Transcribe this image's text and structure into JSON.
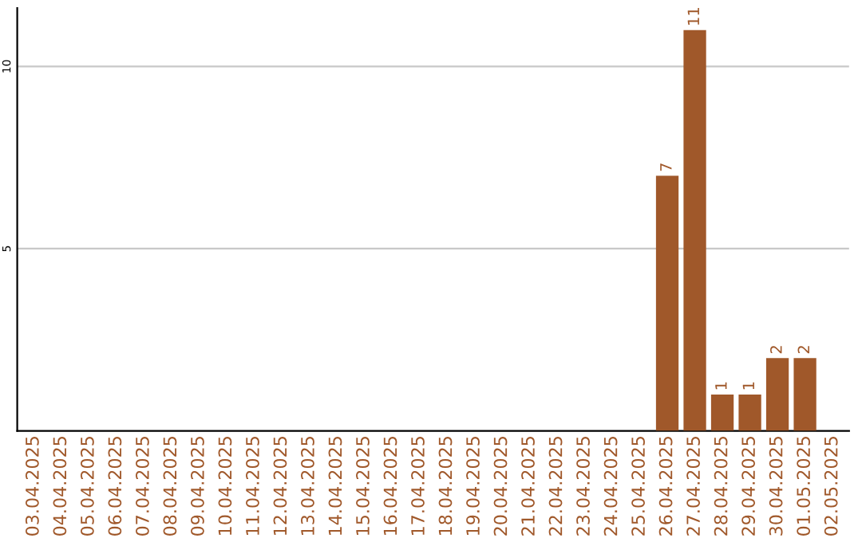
{
  "chart_data": {
    "type": "bar",
    "categories": [
      "03.04.2025",
      "04.04.2025",
      "05.04.2025",
      "06.04.2025",
      "07.04.2025",
      "08.04.2025",
      "09.04.2025",
      "10.04.2025",
      "11.04.2025",
      "12.04.2025",
      "13.04.2025",
      "14.04.2025",
      "15.04.2025",
      "16.04.2025",
      "17.04.2025",
      "18.04.2025",
      "19.04.2025",
      "20.04.2025",
      "21.04.2025",
      "22.04.2025",
      "23.04.2025",
      "24.04.2025",
      "25.04.2025",
      "26.04.2025",
      "27.04.2025",
      "28.04.2025",
      "29.04.2025",
      "30.04.2025",
      "01.05.2025",
      "02.05.2025"
    ],
    "values": [
      0,
      0,
      0,
      0,
      0,
      0,
      0,
      0,
      0,
      0,
      0,
      0,
      0,
      0,
      0,
      0,
      0,
      0,
      0,
      0,
      0,
      0,
      0,
      7,
      11,
      1,
      1,
      2,
      2,
      0
    ],
    "value_labels": [
      null,
      null,
      null,
      null,
      null,
      null,
      null,
      null,
      null,
      null,
      null,
      null,
      null,
      null,
      null,
      null,
      null,
      null,
      null,
      null,
      null,
      null,
      null,
      "7",
      "11",
      "1",
      "1",
      "2",
      "2",
      null
    ],
    "color": "#a0582a",
    "ylim": [
      0,
      11.6
    ],
    "yticks": [
      5,
      10
    ],
    "grid": "y"
  }
}
